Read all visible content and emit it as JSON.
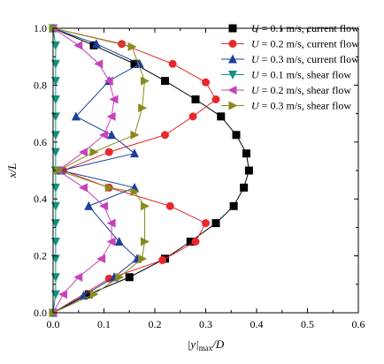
{
  "chart_data": {
    "type": "line",
    "xlabel": "|y|max/D",
    "ylabel": "x/L",
    "xlim": [
      0,
      0.6
    ],
    "ylim": [
      0,
      1.0
    ],
    "xticks": [
      "0.0",
      "0.1",
      "0.2",
      "0.3",
      "0.4",
      "0.5",
      "0.6"
    ],
    "yticks": [
      "0.0",
      "0.2",
      "0.4",
      "0.6",
      "0.8",
      "1.0"
    ],
    "legend_position": "top-right",
    "series": [
      {
        "name": "U = 0.1 m/s, current flow",
        "color": "#000000",
        "marker": "square",
        "points": [
          [
            0.0,
            1.0
          ],
          [
            0.08,
            0.94
          ],
          [
            0.16,
            0.875
          ],
          [
            0.22,
            0.815
          ],
          [
            0.28,
            0.75
          ],
          [
            0.33,
            0.69
          ],
          [
            0.36,
            0.625
          ],
          [
            0.38,
            0.56
          ],
          [
            0.385,
            0.5
          ],
          [
            0.375,
            0.44
          ],
          [
            0.355,
            0.375
          ],
          [
            0.32,
            0.315
          ],
          [
            0.27,
            0.25
          ],
          [
            0.22,
            0.19
          ],
          [
            0.15,
            0.125
          ],
          [
            0.07,
            0.065
          ],
          [
            0.0,
            0.0
          ]
        ]
      },
      {
        "name": "U = 0.2 m/s, current flow",
        "color": "#e8282b",
        "marker": "circle",
        "points": [
          [
            0.0,
            1.0
          ],
          [
            0.135,
            0.945
          ],
          [
            0.235,
            0.875
          ],
          [
            0.3,
            0.81
          ],
          [
            0.32,
            0.75
          ],
          [
            0.275,
            0.69
          ],
          [
            0.22,
            0.625
          ],
          [
            0.11,
            0.565
          ],
          [
            0.02,
            0.5
          ],
          [
            0.11,
            0.44
          ],
          [
            0.23,
            0.375
          ],
          [
            0.3,
            0.315
          ],
          [
            0.28,
            0.25
          ],
          [
            0.215,
            0.185
          ],
          [
            0.11,
            0.12
          ],
          [
            0.0,
            0.0
          ]
        ]
      },
      {
        "name": "U = 0.3 m/s, current flow",
        "color": "#1d3f9c",
        "marker": "triangle-up",
        "points": [
          [
            0.0,
            1.0
          ],
          [
            0.085,
            0.945
          ],
          [
            0.17,
            0.875
          ],
          [
            0.11,
            0.815
          ],
          [
            0.045,
            0.69
          ],
          [
            0.115,
            0.625
          ],
          [
            0.16,
            0.56
          ],
          [
            0.015,
            0.5
          ],
          [
            0.16,
            0.44
          ],
          [
            0.07,
            0.375
          ],
          [
            0.13,
            0.25
          ],
          [
            0.165,
            0.19
          ],
          [
            0.12,
            0.125
          ],
          [
            0.06,
            0.06
          ],
          [
            0.0,
            0.0
          ]
        ]
      },
      {
        "name": "U = 0.1 m/s, shear flow",
        "color": "#14917e",
        "marker": "triangle-down",
        "points": [
          [
            0.0,
            1.0
          ],
          [
            0.005,
            0.94
          ],
          [
            0.005,
            0.875
          ],
          [
            0.005,
            0.815
          ],
          [
            0.005,
            0.75
          ],
          [
            0.005,
            0.69
          ],
          [
            0.005,
            0.625
          ],
          [
            0.005,
            0.565
          ],
          [
            0.005,
            0.5
          ],
          [
            0.005,
            0.44
          ],
          [
            0.005,
            0.375
          ],
          [
            0.005,
            0.315
          ],
          [
            0.005,
            0.25
          ],
          [
            0.005,
            0.19
          ],
          [
            0.005,
            0.125
          ],
          [
            0.005,
            0.065
          ],
          [
            0.0,
            0.0
          ]
        ]
      },
      {
        "name": "U = 0.2 m/s, shear flow",
        "color": "#c543b8",
        "marker": "triangle-left",
        "points": [
          [
            0.0,
            1.0
          ],
          [
            0.05,
            0.94
          ],
          [
            0.09,
            0.875
          ],
          [
            0.11,
            0.815
          ],
          [
            0.12,
            0.75
          ],
          [
            0.115,
            0.69
          ],
          [
            0.1,
            0.625
          ],
          [
            0.06,
            0.565
          ],
          [
            0.01,
            0.5
          ],
          [
            0.06,
            0.44
          ],
          [
            0.1,
            0.375
          ],
          [
            0.115,
            0.315
          ],
          [
            0.115,
            0.25
          ],
          [
            0.095,
            0.19
          ],
          [
            0.05,
            0.125
          ],
          [
            0.02,
            0.065
          ],
          [
            0.0,
            0.0
          ]
        ]
      },
      {
        "name": "U = 0.3 m/s, shear flow",
        "color": "#8a8a1f",
        "marker": "triangle-right",
        "points": [
          [
            0.0,
            1.0
          ],
          [
            0.155,
            0.935
          ],
          [
            0.18,
            0.815
          ],
          [
            0.175,
            0.72
          ],
          [
            0.16,
            0.625
          ],
          [
            0.08,
            0.565
          ],
          [
            0.01,
            0.5
          ],
          [
            0.11,
            0.44
          ],
          [
            0.16,
            0.425
          ],
          [
            0.18,
            0.375
          ],
          [
            0.18,
            0.25
          ],
          [
            0.175,
            0.19
          ],
          [
            0.13,
            0.125
          ],
          [
            0.08,
            0.065
          ],
          [
            0.0,
            0.0
          ]
        ]
      }
    ]
  }
}
